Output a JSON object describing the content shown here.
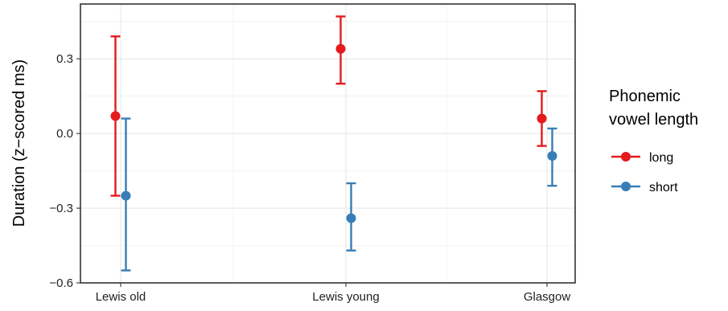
{
  "chart_data": {
    "type": "scatter",
    "subtype": "point-with-errorbars",
    "categories": [
      "Lewis old",
      "Lewis young",
      "Glasgow"
    ],
    "ylabel": "Duration (z−scored ms)",
    "xlabel": "",
    "ylim": [
      -0.6,
      0.52
    ],
    "yticks": [
      -0.6,
      -0.3,
      0.0,
      0.3
    ],
    "ytick_labels": [
      "−0.6",
      "−0.3",
      "0.0",
      "0.3"
    ],
    "grid": true,
    "legend": {
      "title_lines": [
        "Phonemic",
        "vowel length"
      ],
      "position": "right"
    },
    "series": [
      {
        "name": "long",
        "color": "#e41a1c",
        "points": [
          {
            "category": "Lewis old",
            "y": 0.07,
            "lower": -0.25,
            "upper": 0.39
          },
          {
            "category": "Lewis young",
            "y": 0.34,
            "lower": 0.2,
            "upper": 0.47
          },
          {
            "category": "Glasgow",
            "y": 0.06,
            "lower": -0.05,
            "upper": 0.17
          }
        ]
      },
      {
        "name": "short",
        "color": "#377eb8",
        "points": [
          {
            "category": "Lewis old",
            "y": -0.25,
            "lower": -0.55,
            "upper": 0.06
          },
          {
            "category": "Lewis young",
            "y": -0.34,
            "lower": -0.47,
            "upper": -0.2
          },
          {
            "category": "Glasgow",
            "y": -0.09,
            "lower": -0.21,
            "upper": 0.02
          }
        ]
      }
    ]
  }
}
